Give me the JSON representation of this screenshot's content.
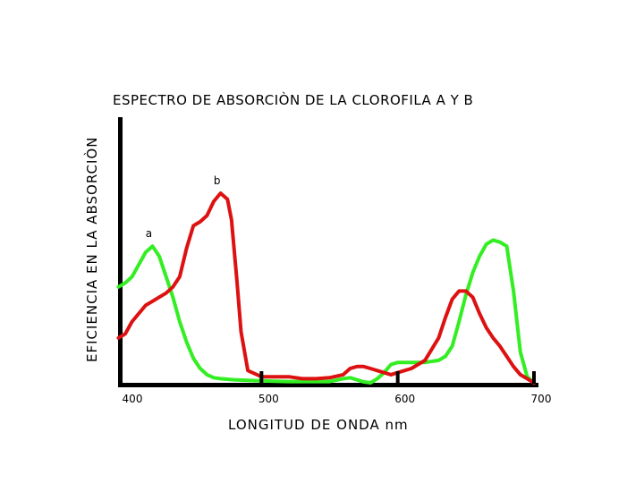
{
  "chart_data": {
    "type": "line",
    "title": "ESPECTRO DE ABSORCIÒN DE LA CLOROFILA  A  Y  B",
    "xlabel": "LONGITUD DE ONDA  nm",
    "ylabel": "EFICIENCIA EN LA ABSORCIÒN",
    "xlim": [
      400,
      700
    ],
    "ylim": [
      0,
      1
    ],
    "x_ticks": [
      400,
      500,
      600,
      700
    ],
    "x_tick_labels": [
      "400",
      "500",
      "600",
      "700"
    ],
    "grid": false,
    "series": [
      {
        "name": "a",
        "color": "#33ee22",
        "x": [
          395,
          400,
          405,
          410,
          415,
          420,
          425,
          430,
          435,
          440,
          445,
          450,
          455,
          460,
          465,
          470,
          480,
          490,
          500,
          510,
          520,
          530,
          540,
          550,
          560,
          565,
          570,
          575,
          580,
          585,
          590,
          595,
          600,
          610,
          620,
          630,
          635,
          640,
          645,
          650,
          655,
          660,
          665,
          670,
          675,
          680,
          685,
          690,
          695,
          700
        ],
        "y": [
          0.47,
          0.49,
          0.52,
          0.58,
          0.64,
          0.67,
          0.62,
          0.52,
          0.42,
          0.3,
          0.2,
          0.12,
          0.07,
          0.04,
          0.025,
          0.02,
          0.015,
          0.012,
          0.01,
          0.008,
          0.006,
          0.006,
          0.006,
          0.006,
          0.02,
          0.025,
          0.015,
          0.005,
          0.0,
          0.02,
          0.05,
          0.09,
          0.1,
          0.1,
          0.1,
          0.11,
          0.13,
          0.18,
          0.3,
          0.43,
          0.54,
          0.62,
          0.68,
          0.7,
          0.69,
          0.67,
          0.45,
          0.15,
          0.03,
          0.0
        ]
      },
      {
        "name": "b",
        "color": "#dd1111",
        "x": [
          395,
          400,
          405,
          410,
          415,
          420,
          425,
          430,
          435,
          440,
          445,
          450,
          455,
          460,
          465,
          470,
          475,
          478,
          482,
          485,
          490,
          500,
          510,
          520,
          530,
          540,
          550,
          560,
          565,
          570,
          575,
          580,
          585,
          590,
          595,
          600,
          610,
          620,
          630,
          635,
          640,
          645,
          650,
          655,
          660,
          665,
          670,
          675,
          680,
          685,
          690,
          695,
          700
        ],
        "y": [
          0.22,
          0.24,
          0.3,
          0.34,
          0.38,
          0.4,
          0.42,
          0.44,
          0.47,
          0.52,
          0.66,
          0.77,
          0.79,
          0.82,
          0.89,
          0.93,
          0.9,
          0.8,
          0.5,
          0.25,
          0.06,
          0.03,
          0.03,
          0.03,
          0.02,
          0.02,
          0.025,
          0.04,
          0.07,
          0.08,
          0.08,
          0.07,
          0.06,
          0.05,
          0.04,
          0.05,
          0.07,
          0.11,
          0.22,
          0.32,
          0.41,
          0.45,
          0.45,
          0.42,
          0.34,
          0.27,
          0.22,
          0.18,
          0.13,
          0.08,
          0.04,
          0.02,
          0.0
        ]
      }
    ]
  }
}
